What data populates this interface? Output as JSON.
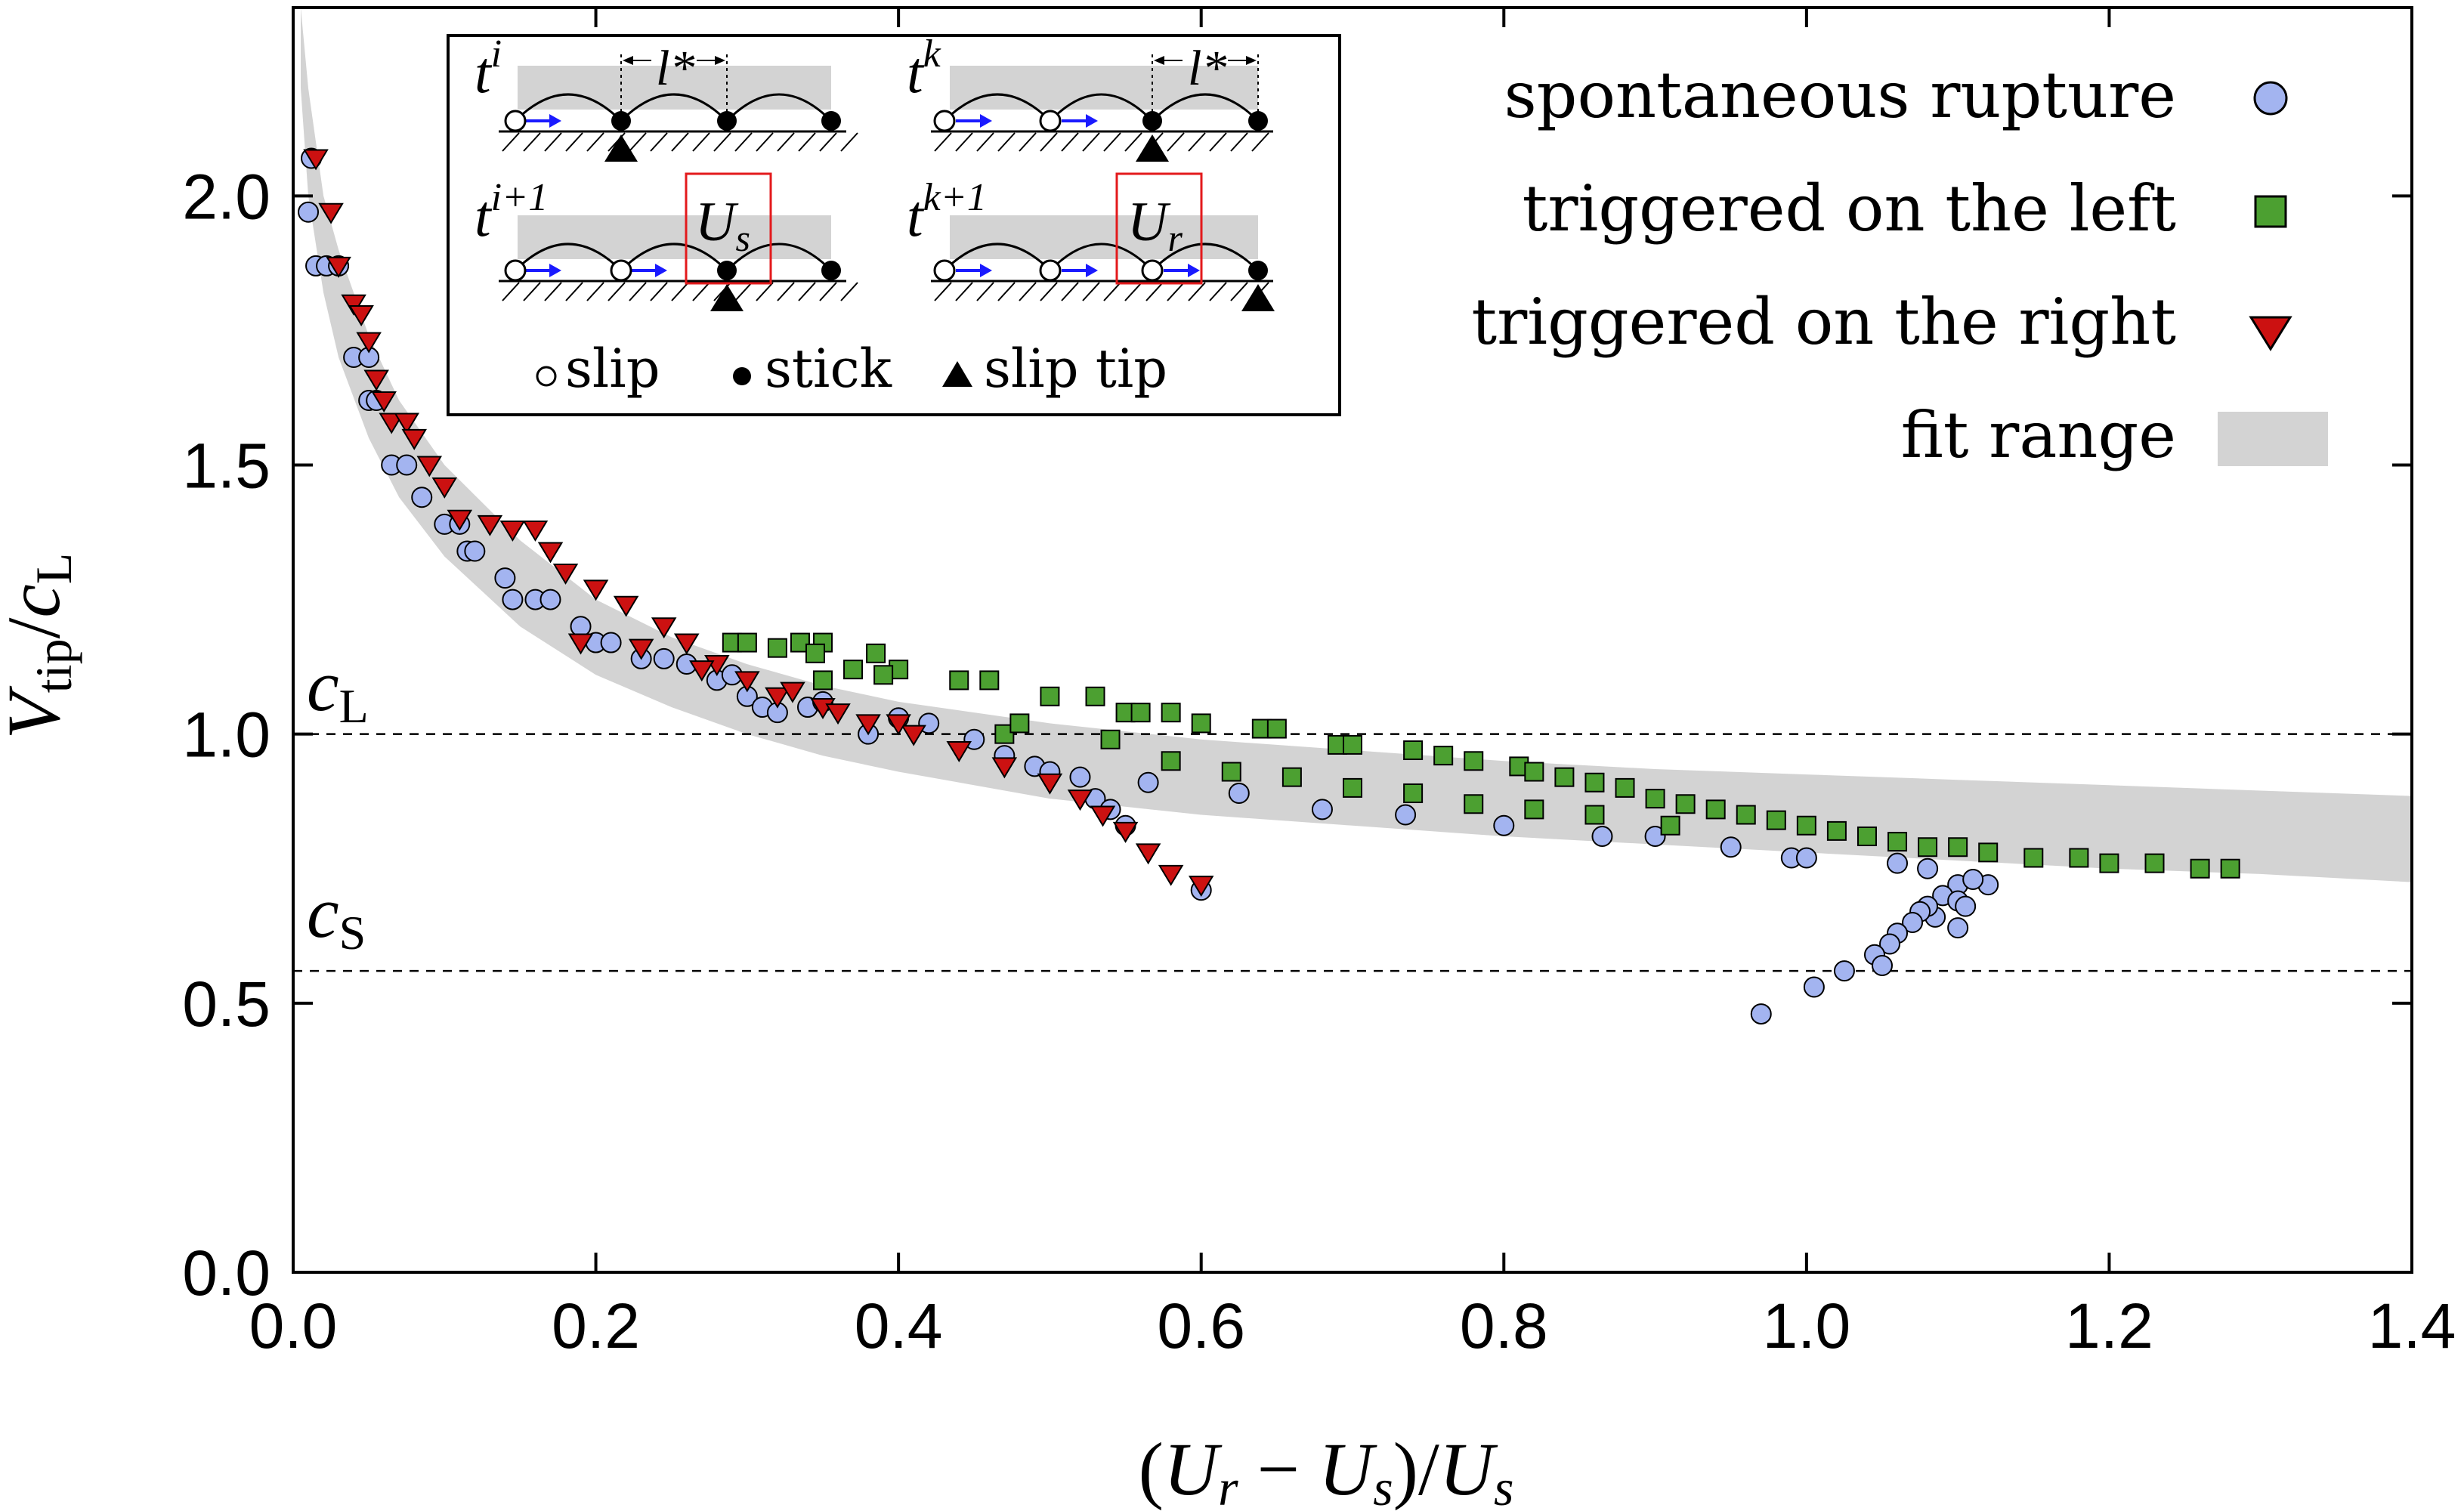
{
  "chart_data": {
    "type": "scatter",
    "xlabel": {
      "lead": "(",
      "u1": "U",
      "s1": "r",
      "mid": " − ",
      "u2": "U",
      "s2": "s",
      "close": ")/",
      "u3": "U",
      "s3": "s"
    },
    "ylabel": {
      "v": "V",
      "vsub": "tip",
      "slash": "/",
      "c": "c",
      "csub": "L"
    },
    "xlim": [
      0.0,
      1.4
    ],
    "ylim": [
      0.0,
      2.35
    ],
    "xticks": [
      0.0,
      0.2,
      0.4,
      0.6,
      0.8,
      1.0,
      1.2,
      1.4
    ],
    "xtick_labels": [
      "0.0",
      "0.2",
      "0.4",
      "0.6",
      "0.8",
      "1.0",
      "1.2",
      "1.4"
    ],
    "yticks": [
      0.0,
      0.5,
      1.0,
      1.5,
      2.0
    ],
    "ytick_labels": [
      "0.0",
      "0.5",
      "1.0",
      "1.5",
      "2.0"
    ],
    "grid": false,
    "reference_lines": [
      {
        "name": "cL",
        "y": 1.0,
        "symbol": "c",
        "sub": "L",
        "style": "dashed"
      },
      {
        "name": "cS",
        "y": 0.56,
        "symbol": "c",
        "sub": "S",
        "style": "dashed"
      }
    ],
    "fit_band": {
      "x": [
        0.005,
        0.01,
        0.02,
        0.03,
        0.05,
        0.07,
        0.1,
        0.15,
        0.2,
        0.25,
        0.3,
        0.35,
        0.4,
        0.5,
        0.6,
        0.7,
        0.8,
        0.9,
        1.0,
        1.1,
        1.2,
        1.3,
        1.4
      ],
      "upper": [
        2.35,
        2.2,
        2.0,
        1.9,
        1.74,
        1.62,
        1.5,
        1.36,
        1.25,
        1.18,
        1.13,
        1.09,
        1.06,
        1.02,
        0.99,
        0.97,
        0.95,
        0.935,
        0.925,
        0.915,
        0.905,
        0.895,
        0.885
      ],
      "lower": [
        2.2,
        2.0,
        1.82,
        1.7,
        1.55,
        1.44,
        1.33,
        1.2,
        1.11,
        1.05,
        1.0,
        0.96,
        0.93,
        0.88,
        0.85,
        0.83,
        0.81,
        0.795,
        0.78,
        0.765,
        0.75,
        0.74,
        0.725
      ]
    },
    "series": [
      {
        "name": "spontaneous rupture",
        "marker": "circle",
        "color": "#a3b4f0",
        "points": [
          [
            0.012,
            2.07
          ],
          [
            0.01,
            1.97
          ],
          [
            0.015,
            1.87
          ],
          [
            0.022,
            1.87
          ],
          [
            0.03,
            1.87
          ],
          [
            0.04,
            1.7
          ],
          [
            0.05,
            1.7
          ],
          [
            0.05,
            1.62
          ],
          [
            0.055,
            1.62
          ],
          [
            0.065,
            1.5
          ],
          [
            0.075,
            1.5
          ],
          [
            0.085,
            1.44
          ],
          [
            0.1,
            1.39
          ],
          [
            0.11,
            1.39
          ],
          [
            0.115,
            1.34
          ],
          [
            0.12,
            1.34
          ],
          [
            0.14,
            1.29
          ],
          [
            0.145,
            1.25
          ],
          [
            0.16,
            1.25
          ],
          [
            0.17,
            1.25
          ],
          [
            0.19,
            1.2
          ],
          [
            0.2,
            1.17
          ],
          [
            0.21,
            1.17
          ],
          [
            0.23,
            1.14
          ],
          [
            0.245,
            1.14
          ],
          [
            0.26,
            1.13
          ],
          [
            0.28,
            1.1
          ],
          [
            0.3,
            1.07
          ],
          [
            0.29,
            1.11
          ],
          [
            0.31,
            1.05
          ],
          [
            0.32,
            1.04
          ],
          [
            0.34,
            1.05
          ],
          [
            0.35,
            1.06
          ],
          [
            0.38,
            1.0
          ],
          [
            0.4,
            1.03
          ],
          [
            0.42,
            1.02
          ],
          [
            0.45,
            0.99
          ],
          [
            0.47,
            0.96
          ],
          [
            0.49,
            0.94
          ],
          [
            0.5,
            0.93
          ],
          [
            0.52,
            0.92
          ],
          [
            0.53,
            0.88
          ],
          [
            0.54,
            0.86
          ],
          [
            0.55,
            0.83
          ],
          [
            0.6,
            0.71
          ],
          [
            0.565,
            0.91
          ],
          [
            0.625,
            0.89
          ],
          [
            0.68,
            0.86
          ],
          [
            0.735,
            0.85
          ],
          [
            0.8,
            0.83
          ],
          [
            0.865,
            0.81
          ],
          [
            0.9,
            0.81
          ],
          [
            0.95,
            0.79
          ],
          [
            0.99,
            0.77
          ],
          [
            1.0,
            0.77
          ],
          [
            1.06,
            0.76
          ],
          [
            1.08,
            0.75
          ],
          [
            1.12,
            0.72
          ],
          [
            1.1,
            0.72
          ],
          [
            1.09,
            0.7
          ],
          [
            1.11,
            0.73
          ],
          [
            1.1,
            0.69
          ],
          [
            1.105,
            0.68
          ],
          [
            1.085,
            0.66
          ],
          [
            1.08,
            0.68
          ],
          [
            1.075,
            0.67
          ],
          [
            1.07,
            0.65
          ],
          [
            1.1,
            0.64
          ],
          [
            1.06,
            0.63
          ],
          [
            1.055,
            0.61
          ],
          [
            1.045,
            0.59
          ],
          [
            1.05,
            0.57
          ],
          [
            1.025,
            0.56
          ],
          [
            1.005,
            0.53
          ],
          [
            0.97,
            0.48
          ]
        ]
      },
      {
        "name": "triggered on the left",
        "marker": "square",
        "color": "#4ca031",
        "points": [
          [
            0.29,
            1.17
          ],
          [
            0.3,
            1.17
          ],
          [
            0.32,
            1.16
          ],
          [
            0.335,
            1.17
          ],
          [
            0.35,
            1.17
          ],
          [
            0.345,
            1.15
          ],
          [
            0.37,
            1.12
          ],
          [
            0.385,
            1.15
          ],
          [
            0.4,
            1.12
          ],
          [
            0.44,
            1.1
          ],
          [
            0.46,
            1.1
          ],
          [
            0.35,
            1.1
          ],
          [
            0.39,
            1.11
          ],
          [
            0.5,
            1.07
          ],
          [
            0.53,
            1.07
          ],
          [
            0.55,
            1.04
          ],
          [
            0.56,
            1.04
          ],
          [
            0.58,
            1.04
          ],
          [
            0.6,
            1.02
          ],
          [
            0.64,
            1.01
          ],
          [
            0.65,
            1.01
          ],
          [
            0.69,
            0.98
          ],
          [
            0.7,
            0.98
          ],
          [
            0.74,
            0.97
          ],
          [
            0.76,
            0.96
          ],
          [
            0.78,
            0.95
          ],
          [
            0.81,
            0.94
          ],
          [
            0.82,
            0.93
          ],
          [
            0.84,
            0.92
          ],
          [
            0.86,
            0.91
          ],
          [
            0.88,
            0.9
          ],
          [
            0.9,
            0.88
          ],
          [
            0.92,
            0.87
          ],
          [
            0.94,
            0.86
          ],
          [
            0.96,
            0.85
          ],
          [
            0.98,
            0.84
          ],
          [
            1.0,
            0.83
          ],
          [
            1.02,
            0.82
          ],
          [
            1.04,
            0.81
          ],
          [
            1.06,
            0.8
          ],
          [
            1.08,
            0.79
          ],
          [
            1.1,
            0.79
          ],
          [
            1.12,
            0.78
          ],
          [
            1.15,
            0.77
          ],
          [
            1.18,
            0.77
          ],
          [
            1.2,
            0.76
          ],
          [
            1.23,
            0.76
          ],
          [
            1.26,
            0.75
          ],
          [
            1.28,
            0.75
          ],
          [
            0.47,
            1.0
          ],
          [
            0.48,
            1.02
          ],
          [
            0.54,
            0.99
          ],
          [
            0.58,
            0.95
          ],
          [
            0.62,
            0.93
          ],
          [
            0.66,
            0.92
          ],
          [
            0.7,
            0.9
          ],
          [
            0.74,
            0.89
          ],
          [
            0.78,
            0.87
          ],
          [
            0.82,
            0.86
          ],
          [
            0.86,
            0.85
          ],
          [
            0.91,
            0.83
          ]
        ]
      },
      {
        "name": "triggered on the right",
        "marker": "triangle-down",
        "color": "#cc1111",
        "points": [
          [
            0.015,
            2.07
          ],
          [
            0.025,
            1.97
          ],
          [
            0.03,
            1.87
          ],
          [
            0.04,
            1.8
          ],
          [
            0.045,
            1.78
          ],
          [
            0.05,
            1.73
          ],
          [
            0.055,
            1.66
          ],
          [
            0.06,
            1.62
          ],
          [
            0.065,
            1.58
          ],
          [
            0.075,
            1.58
          ],
          [
            0.08,
            1.55
          ],
          [
            0.09,
            1.5
          ],
          [
            0.1,
            1.46
          ],
          [
            0.11,
            1.4
          ],
          [
            0.13,
            1.39
          ],
          [
            0.145,
            1.38
          ],
          [
            0.16,
            1.38
          ],
          [
            0.17,
            1.34
          ],
          [
            0.18,
            1.3
          ],
          [
            0.2,
            1.27
          ],
          [
            0.22,
            1.24
          ],
          [
            0.245,
            1.2
          ],
          [
            0.26,
            1.17
          ],
          [
            0.28,
            1.13
          ],
          [
            0.3,
            1.1
          ],
          [
            0.32,
            1.07
          ],
          [
            0.35,
            1.05
          ],
          [
            0.38,
            1.02
          ],
          [
            0.41,
            1.0
          ],
          [
            0.44,
            0.97
          ],
          [
            0.47,
            0.94
          ],
          [
            0.5,
            0.91
          ],
          [
            0.52,
            0.88
          ],
          [
            0.535,
            0.85
          ],
          [
            0.55,
            0.82
          ],
          [
            0.565,
            0.78
          ],
          [
            0.58,
            0.74
          ],
          [
            0.6,
            0.72
          ],
          [
            0.19,
            1.17
          ],
          [
            0.23,
            1.16
          ],
          [
            0.27,
            1.12
          ],
          [
            0.33,
            1.08
          ],
          [
            0.36,
            1.04
          ],
          [
            0.4,
            1.02
          ]
        ]
      }
    ],
    "legend": {
      "placement": "top-right",
      "entries": [
        {
          "label": "spontaneous rupture",
          "marker": "circle"
        },
        {
          "label": "triggered on the left",
          "marker": "square"
        },
        {
          "label": "triggered on the right",
          "marker": "triangle-down"
        },
        {
          "label": "fit range",
          "marker": "band"
        }
      ]
    },
    "inset": {
      "panels": [
        {
          "t": "t",
          "sup": "i"
        },
        {
          "t": "t",
          "sup": "k"
        },
        {
          "t": "t",
          "sup": "i+1"
        },
        {
          "t": "t",
          "sup": "k+1"
        }
      ],
      "length_label": "l*",
      "box_labels": [
        {
          "u": "U",
          "sub": "s"
        },
        {
          "u": "U",
          "sub": "r"
        }
      ],
      "legend": [
        "slip",
        "stick",
        "slip tip"
      ]
    },
    "colors": {
      "band": "#d3d3d3",
      "arrow": "#1a1aff",
      "box": "#e31a1c"
    }
  }
}
